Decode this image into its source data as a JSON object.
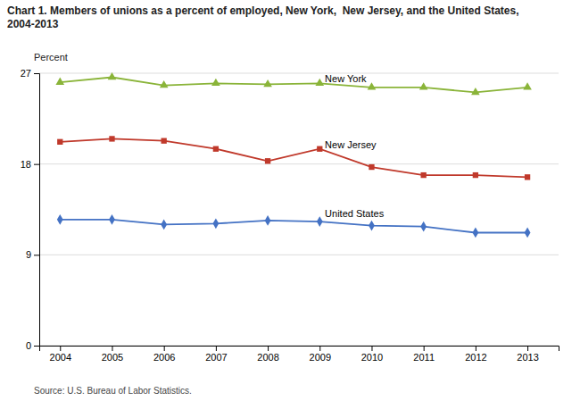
{
  "chart_data": {
    "type": "line",
    "title": "Chart 1. Members of unions as a percent of employed, New York,  New Jersey, and the United States,\n2004-2013",
    "ylabel": "Percent",
    "source": "Source: U.S. Bureau of Labor Statistics.",
    "x": [
      2004,
      2005,
      2006,
      2007,
      2008,
      2009,
      2010,
      2011,
      2012,
      2013
    ],
    "series": [
      {
        "name": "New York",
        "color": "#8ab439",
        "marker": "triangle",
        "values": [
          26.1,
          26.6,
          25.8,
          26.0,
          25.9,
          26.0,
          25.6,
          25.6,
          25.1,
          25.6
        ]
      },
      {
        "name": "New Jersey",
        "color": "#c0392b",
        "marker": "square",
        "values": [
          20.2,
          20.5,
          20.3,
          19.5,
          18.3,
          19.5,
          17.7,
          16.9,
          16.9,
          16.7
        ]
      },
      {
        "name": "United States",
        "color": "#4472c4",
        "marker": "diamond",
        "values": [
          12.5,
          12.5,
          12.0,
          12.1,
          12.4,
          12.3,
          11.9,
          11.8,
          11.2,
          11.2
        ]
      }
    ],
    "annotations": [
      {
        "text": "New York",
        "x": 2009.1,
        "y": 26.35
      },
      {
        "text": "New Jersey",
        "x": 2009.1,
        "y": 19.85
      },
      {
        "text": "United States",
        "x": 2009.1,
        "y": 13.0
      }
    ],
    "xlim": [
      2003.6,
      2013.6
    ],
    "xticks": [
      2004,
      2005,
      2006,
      2007,
      2008,
      2009,
      2010,
      2011,
      2012,
      2013
    ],
    "ylim": [
      0,
      27
    ],
    "yticks": [
      0,
      9,
      18,
      27
    ],
    "grid": true
  }
}
